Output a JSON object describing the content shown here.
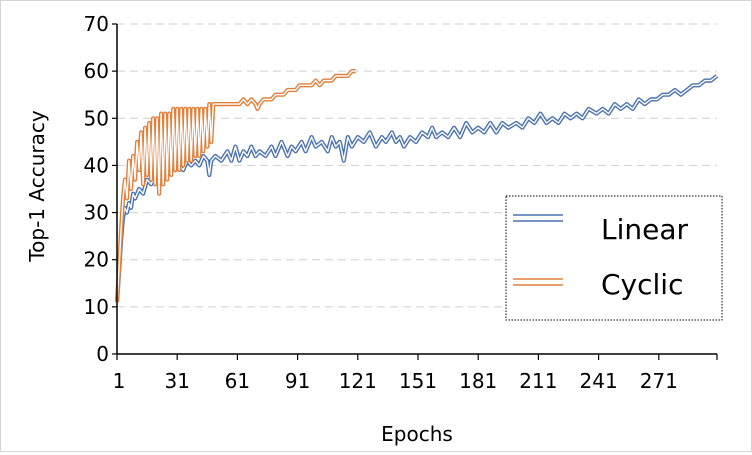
{
  "chart_data": {
    "type": "line",
    "xlabel": "Epochs",
    "ylabel": "Top-1 Accuracy",
    "xlim": [
      1,
      300
    ],
    "ylim": [
      0,
      70
    ],
    "yticks": [
      0,
      10,
      20,
      30,
      40,
      50,
      60,
      70
    ],
    "xticks": [
      1,
      31,
      61,
      91,
      121,
      151,
      181,
      211,
      241,
      271
    ],
    "grid": "horizontal-dashed",
    "legend_position": "right-middle",
    "series": [
      {
        "name": "Linear",
        "color": "#4a72b0",
        "points": [
          [
            1,
            11
          ],
          [
            2,
            17
          ],
          [
            3,
            24
          ],
          [
            4,
            29
          ],
          [
            5,
            31
          ],
          [
            6,
            30
          ],
          [
            7,
            32
          ],
          [
            8,
            31
          ],
          [
            9,
            34
          ],
          [
            10,
            33
          ],
          [
            12,
            35
          ],
          [
            14,
            34
          ],
          [
            16,
            37
          ],
          [
            18,
            36
          ],
          [
            20,
            38
          ],
          [
            22,
            37
          ],
          [
            24,
            39
          ],
          [
            26,
            38
          ],
          [
            28,
            40
          ],
          [
            30,
            39
          ],
          [
            32,
            40
          ],
          [
            34,
            39
          ],
          [
            36,
            41
          ],
          [
            38,
            40
          ],
          [
            40,
            41
          ],
          [
            42,
            40
          ],
          [
            44,
            42
          ],
          [
            46,
            41
          ],
          [
            47,
            38
          ],
          [
            48,
            41
          ],
          [
            50,
            42
          ],
          [
            53,
            41
          ],
          [
            56,
            43
          ],
          [
            58,
            41
          ],
          [
            60,
            44
          ],
          [
            62,
            41
          ],
          [
            64,
            43
          ],
          [
            66,
            42
          ],
          [
            68,
            44
          ],
          [
            70,
            42
          ],
          [
            72,
            43
          ],
          [
            75,
            42
          ],
          [
            78,
            44
          ],
          [
            80,
            42
          ],
          [
            83,
            45
          ],
          [
            86,
            42
          ],
          [
            88,
            44
          ],
          [
            90,
            43
          ],
          [
            93,
            45
          ],
          [
            95,
            43
          ],
          [
            98,
            46
          ],
          [
            100,
            44
          ],
          [
            103,
            45
          ],
          [
            106,
            43
          ],
          [
            108,
            46
          ],
          [
            110,
            44
          ],
          [
            112,
            45
          ],
          [
            114,
            41
          ],
          [
            116,
            46
          ],
          [
            118,
            44
          ],
          [
            121,
            46
          ],
          [
            124,
            45
          ],
          [
            127,
            47
          ],
          [
            130,
            44
          ],
          [
            133,
            46
          ],
          [
            135,
            45
          ],
          [
            138,
            47
          ],
          [
            140,
            45
          ],
          [
            142,
            46
          ],
          [
            144,
            44
          ],
          [
            147,
            46
          ],
          [
            150,
            45
          ],
          [
            153,
            47
          ],
          [
            156,
            46
          ],
          [
            158,
            48
          ],
          [
            160,
            46
          ],
          [
            163,
            47
          ],
          [
            166,
            46
          ],
          [
            169,
            48
          ],
          [
            172,
            46
          ],
          [
            175,
            49
          ],
          [
            178,
            47
          ],
          [
            181,
            48
          ],
          [
            184,
            47
          ],
          [
            187,
            49
          ],
          [
            190,
            47
          ],
          [
            193,
            49
          ],
          [
            196,
            48
          ],
          [
            200,
            49
          ],
          [
            203,
            48
          ],
          [
            206,
            50
          ],
          [
            209,
            49
          ],
          [
            212,
            51
          ],
          [
            215,
            49
          ],
          [
            218,
            50
          ],
          [
            221,
            49
          ],
          [
            224,
            51
          ],
          [
            227,
            50
          ],
          [
            230,
            51
          ],
          [
            233,
            50
          ],
          [
            236,
            52
          ],
          [
            240,
            51
          ],
          [
            243,
            52
          ],
          [
            246,
            51
          ],
          [
            249,
            53
          ],
          [
            252,
            52
          ],
          [
            255,
            53
          ],
          [
            258,
            52
          ],
          [
            261,
            54
          ],
          [
            264,
            53
          ],
          [
            267,
            54
          ],
          [
            270,
            54
          ],
          [
            273,
            55
          ],
          [
            276,
            55
          ],
          [
            279,
            56
          ],
          [
            282,
            55
          ],
          [
            285,
            56
          ],
          [
            288,
            57
          ],
          [
            291,
            57
          ],
          [
            294,
            58
          ],
          [
            297,
            58
          ],
          [
            300,
            59
          ]
        ]
      },
      {
        "name": "Cyclic",
        "color": "#e0803c",
        "points": [
          [
            1,
            11
          ],
          [
            2,
            18
          ],
          [
            3,
            26
          ],
          [
            4,
            33
          ],
          [
            5,
            37
          ],
          [
            6,
            33
          ],
          [
            7,
            41
          ],
          [
            8,
            35
          ],
          [
            9,
            42
          ],
          [
            10,
            37
          ],
          [
            11,
            45
          ],
          [
            12,
            39
          ],
          [
            13,
            47
          ],
          [
            14,
            36
          ],
          [
            15,
            48
          ],
          [
            16,
            38
          ],
          [
            17,
            49
          ],
          [
            18,
            37
          ],
          [
            19,
            50
          ],
          [
            20,
            36
          ],
          [
            21,
            50
          ],
          [
            22,
            34
          ],
          [
            23,
            51
          ],
          [
            24,
            36
          ],
          [
            25,
            51
          ],
          [
            26,
            37
          ],
          [
            27,
            51
          ],
          [
            28,
            38
          ],
          [
            29,
            52
          ],
          [
            30,
            39
          ],
          [
            31,
            52
          ],
          [
            32,
            39
          ],
          [
            33,
            52
          ],
          [
            34,
            40
          ],
          [
            35,
            52
          ],
          [
            36,
            41
          ],
          [
            37,
            52
          ],
          [
            38,
            41
          ],
          [
            39,
            52
          ],
          [
            40,
            42
          ],
          [
            41,
            52
          ],
          [
            42,
            42
          ],
          [
            43,
            52
          ],
          [
            44,
            43
          ],
          [
            45,
            52
          ],
          [
            46,
            44
          ],
          [
            47,
            53
          ],
          [
            48,
            45
          ],
          [
            49,
            53
          ],
          [
            50,
            53
          ],
          [
            52,
            53
          ],
          [
            54,
            53
          ],
          [
            56,
            53
          ],
          [
            58,
            53
          ],
          [
            60,
            53
          ],
          [
            62,
            53
          ],
          [
            64,
            54
          ],
          [
            66,
            53
          ],
          [
            68,
            54
          ],
          [
            70,
            53
          ],
          [
            71,
            52
          ],
          [
            72,
            53
          ],
          [
            74,
            54
          ],
          [
            76,
            54
          ],
          [
            78,
            54
          ],
          [
            80,
            55
          ],
          [
            82,
            55
          ],
          [
            84,
            55
          ],
          [
            86,
            56
          ],
          [
            88,
            56
          ],
          [
            90,
            56
          ],
          [
            92,
            57
          ],
          [
            94,
            57
          ],
          [
            96,
            57
          ],
          [
            98,
            57
          ],
          [
            100,
            58
          ],
          [
            102,
            57
          ],
          [
            104,
            58
          ],
          [
            106,
            58
          ],
          [
            108,
            58
          ],
          [
            110,
            59
          ],
          [
            112,
            59
          ],
          [
            114,
            59
          ],
          [
            116,
            59
          ],
          [
            118,
            60
          ],
          [
            120,
            60
          ]
        ]
      }
    ]
  }
}
